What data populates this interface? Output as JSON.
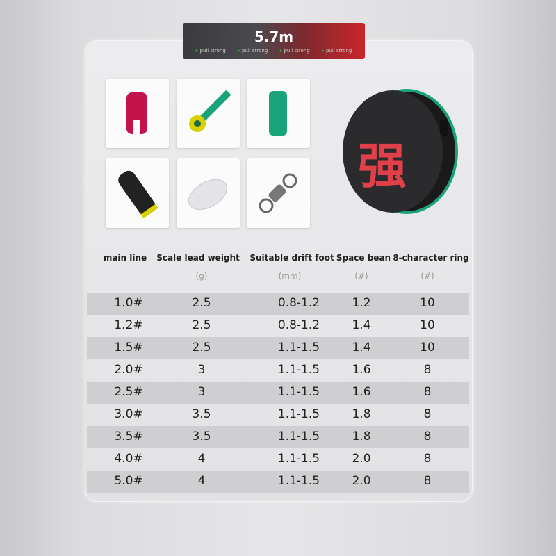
{
  "banner": {
    "length": "5.7m",
    "tags": [
      "pull strong",
      "pull strong",
      "pull strong",
      "pull strong"
    ]
  },
  "colors": {
    "banner_red": "#c9252b",
    "banner_dark": "#3a3b3f",
    "reel_text": "#e0404a",
    "accent_green": "#1aa37a"
  },
  "products": [
    "red-space-bean-icon",
    "green-lead-holder-icon",
    "green-space-bean-icon",
    "black-float-seat-icon",
    "clear-lead-icon",
    "swivel-ring-icon"
  ],
  "reel": {
    "logo_text": "强"
  },
  "table": {
    "headers": [
      "main line",
      "Scale lead weight",
      "Suitable drift foot",
      "Space bean",
      "8-character ring"
    ],
    "units": [
      "",
      "(g)",
      "(mm)",
      "(#)",
      "(#)"
    ],
    "rows": [
      [
        "1.0#",
        "2.5",
        "0.8-1.2",
        "1.2",
        "10"
      ],
      [
        "1.2#",
        "2.5",
        "0.8-1.2",
        "1.4",
        "10"
      ],
      [
        "1.5#",
        "2.5",
        "1.1-1.5",
        "1.4",
        "10"
      ],
      [
        "2.0#",
        "3",
        "1.1-1.5",
        "1.6",
        "8"
      ],
      [
        "2.5#",
        "3",
        "1.1-1.5",
        "1.6",
        "8"
      ],
      [
        "3.0#",
        "3.5",
        "1.1-1.5",
        "1.8",
        "8"
      ],
      [
        "3.5#",
        "3.5",
        "1.1-1.5",
        "1.8",
        "8"
      ],
      [
        "4.0#",
        "4",
        "1.1-1.5",
        "2.0",
        "8"
      ],
      [
        "5.0#",
        "4",
        "1.1-1.5",
        "2.0",
        "8"
      ]
    ]
  }
}
